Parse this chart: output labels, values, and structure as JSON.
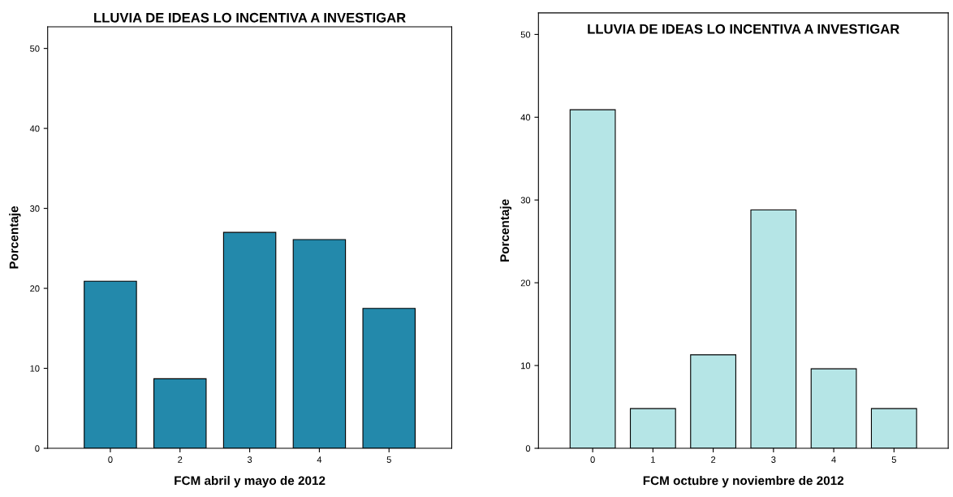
{
  "chart_data": [
    {
      "type": "bar",
      "title": "LLUVIA DE IDEAS LO INCENTIVA A INVESTIGAR",
      "xlabel": "FCM abril y mayo de 2012",
      "ylabel": "Porcentaje",
      "categories": [
        "0",
        "2",
        "3",
        "4",
        "5"
      ],
      "values": [
        20.9,
        8.7,
        27.0,
        26.1,
        17.5
      ],
      "color": "#2389ab",
      "ylim": [
        0,
        52.7
      ],
      "yticks": [
        0,
        10,
        20,
        30,
        40,
        50
      ],
      "grid": false,
      "legend": false
    },
    {
      "type": "bar",
      "title": "LLUVIA DE IDEAS LO INCENTIVA A INVESTIGAR",
      "xlabel": "FCM octubre y noviembre de 2012",
      "ylabel": "Porcentaje",
      "categories": [
        "0",
        "1",
        "2",
        "3",
        "4",
        "5"
      ],
      "values": [
        40.9,
        4.8,
        11.3,
        28.8,
        9.6,
        4.8
      ],
      "color": "#b5e5e6",
      "ylim": [
        0,
        52.6
      ],
      "yticks": [
        0,
        10,
        20,
        30,
        40,
        50
      ],
      "grid": false,
      "legend": false
    }
  ]
}
